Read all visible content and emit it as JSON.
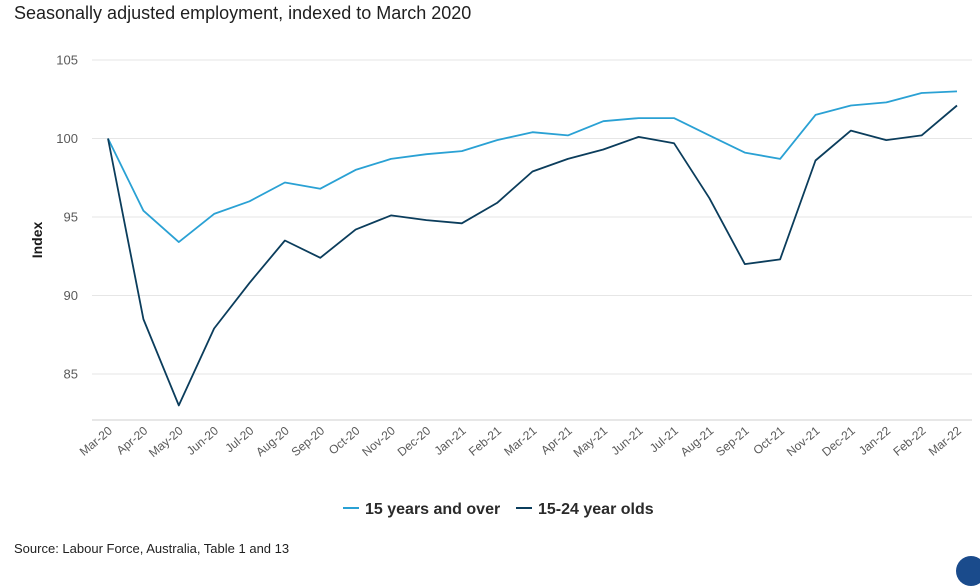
{
  "title": "Seasonally adjusted employment, indexed to March 2020",
  "source": "Source: Labour Force, Australia, Table 1 and 13",
  "chart_data": {
    "type": "line",
    "ylabel": "Index",
    "xlabel": "",
    "ylim": [
      82,
      105
    ],
    "yticks": [
      85,
      90,
      95,
      100,
      105
    ],
    "grid": true,
    "legend_position": "bottom-center",
    "x": [
      "Mar-20",
      "Apr-20",
      "May-20",
      "Jun-20",
      "Jul-20",
      "Aug-20",
      "Sep-20",
      "Oct-20",
      "Nov-20",
      "Dec-20",
      "Jan-21",
      "Feb-21",
      "Mar-21",
      "Apr-21",
      "May-21",
      "Jun-21",
      "Jul-21",
      "Aug-21",
      "Sep-21",
      "Oct-21",
      "Nov-21",
      "Dec-21",
      "Jan-22",
      "Feb-22",
      "Mar-22"
    ],
    "series": [
      {
        "name": "15 years and over",
        "color": "#2aa1d4",
        "values": [
          100,
          95.4,
          93.4,
          95.2,
          96.0,
          97.2,
          96.8,
          98.0,
          98.7,
          99.0,
          99.2,
          99.9,
          100.4,
          100.2,
          101.1,
          101.3,
          101.3,
          100.2,
          99.1,
          98.7,
          101.5,
          102.1,
          102.3,
          102.9,
          103.0
        ]
      },
      {
        "name": "15-24 year olds",
        "color": "#0b3d5c",
        "values": [
          100,
          88.5,
          83.0,
          87.9,
          90.8,
          93.5,
          92.4,
          94.2,
          95.1,
          94.8,
          94.6,
          95.9,
          97.9,
          98.7,
          99.3,
          100.1,
          99.7,
          96.2,
          92.0,
          92.3,
          98.6,
          100.5,
          99.9,
          100.2,
          102.1
        ]
      }
    ]
  }
}
